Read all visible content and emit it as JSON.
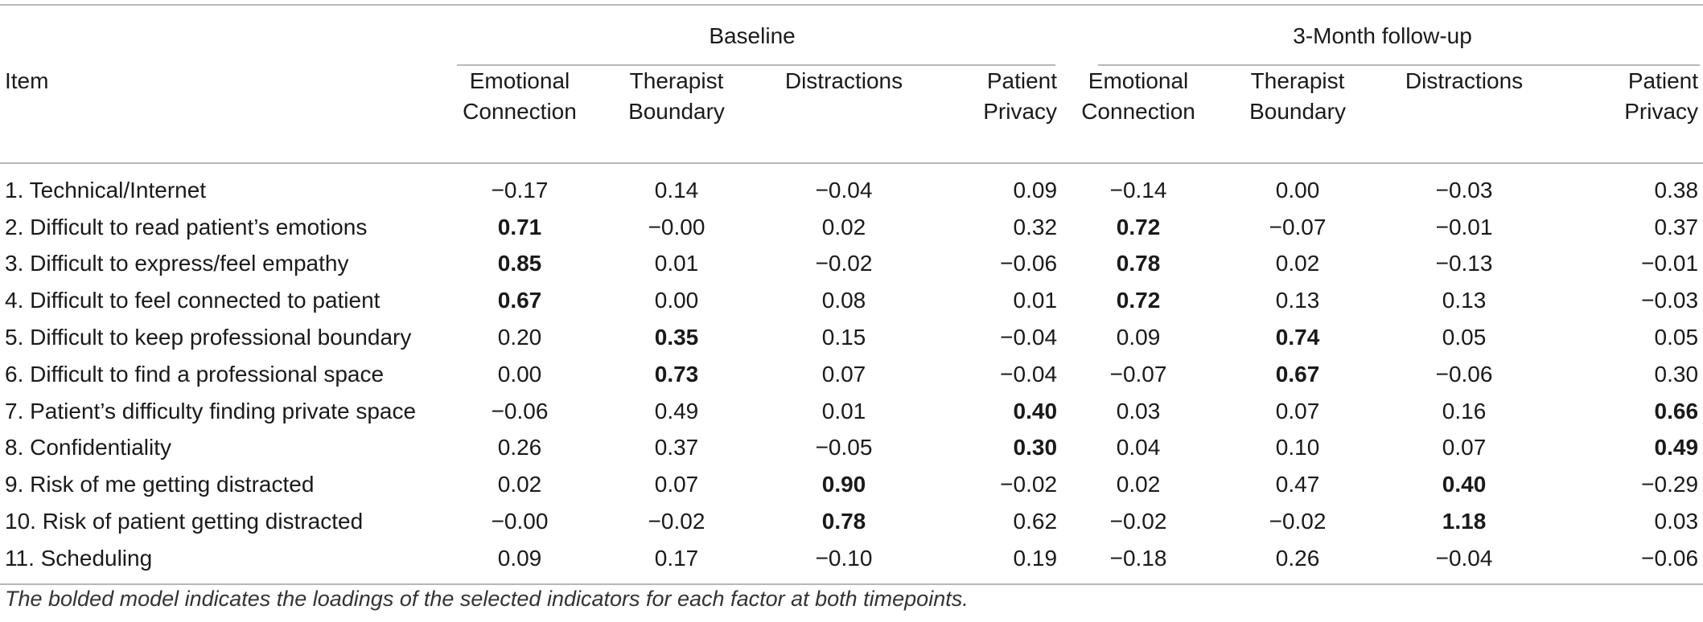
{
  "table": {
    "group_headers": {
      "baseline": "Baseline",
      "followup": "3-Month follow-up"
    },
    "item_header": "Item",
    "column_headers": {
      "baseline": [
        {
          "line1": "Emotional",
          "line2": "Connection"
        },
        {
          "line1": "Therapist",
          "line2": "Boundary"
        },
        {
          "line1": "Distractions",
          "line2": ""
        },
        {
          "line1": "Patient",
          "line2": "Privacy"
        }
      ],
      "followup": [
        {
          "line1": "Emotional",
          "line2": "Connection"
        },
        {
          "line1": "Therapist",
          "line2": "Boundary"
        },
        {
          "line1": "Distractions",
          "line2": ""
        },
        {
          "line1": "Patient",
          "line2": "Privacy"
        }
      ]
    },
    "rows": [
      {
        "item": "1. Technical/Internet",
        "values": [
          "−0.17",
          "0.14",
          "−0.04",
          "0.09",
          "−0.14",
          "0.00",
          "−0.03",
          "0.38"
        ],
        "bold": []
      },
      {
        "item": "2. Difficult to read patient’s emotions",
        "values": [
          "0.71",
          "−0.00",
          "0.02",
          "0.32",
          "0.72",
          "−0.07",
          "−0.01",
          "0.37"
        ],
        "bold": [
          0,
          4
        ]
      },
      {
        "item": "3. Difficult to express/feel empathy",
        "values": [
          "0.85",
          "0.01",
          "−0.02",
          "−0.06",
          "0.78",
          "0.02",
          "−0.13",
          "−0.01"
        ],
        "bold": [
          0,
          4
        ]
      },
      {
        "item": "4. Difficult to feel connected to patient",
        "values": [
          "0.67",
          "0.00",
          "0.08",
          "0.01",
          "0.72",
          "0.13",
          "0.13",
          "−0.03"
        ],
        "bold": [
          0,
          4
        ]
      },
      {
        "item": "5. Difficult to keep professional boundary",
        "values": [
          "0.20",
          "0.35",
          "0.15",
          "−0.04",
          "0.09",
          "0.74",
          "0.05",
          "0.05"
        ],
        "bold": [
          1,
          5
        ]
      },
      {
        "item": "6. Difficult to find a professional space",
        "values": [
          "0.00",
          "0.73",
          "0.07",
          "−0.04",
          "−0.07",
          "0.67",
          "−0.06",
          "0.30"
        ],
        "bold": [
          1,
          5
        ]
      },
      {
        "item": "7. Patient’s difficulty finding private space",
        "values": [
          "−0.06",
          "0.49",
          "0.01",
          "0.40",
          "0.03",
          "0.07",
          "0.16",
          "0.66"
        ],
        "bold": [
          3,
          7
        ]
      },
      {
        "item": "8. Confidentiality",
        "values": [
          "0.26",
          "0.37",
          "−0.05",
          "0.30",
          "0.04",
          "0.10",
          "0.07",
          "0.49"
        ],
        "bold": [
          3,
          7
        ]
      },
      {
        "item": "9. Risk of me getting distracted",
        "values": [
          "0.02",
          "0.07",
          "0.90",
          "−0.02",
          "0.02",
          "0.47",
          "0.40",
          "−0.29"
        ],
        "bold": [
          2,
          6
        ]
      },
      {
        "item": "10. Risk of patient getting distracted",
        "values": [
          "−0.00",
          "−0.02",
          "0.78",
          "0.62",
          "−0.02",
          "−0.02",
          "1.18",
          "0.03"
        ],
        "bold": [
          2,
          6
        ]
      },
      {
        "item": "11. Scheduling",
        "values": [
          "0.09",
          "0.17",
          "−0.10",
          "0.19",
          "−0.18",
          "0.26",
          "−0.04",
          "−0.06"
        ],
        "bold": []
      }
    ]
  },
  "caption": "The bolded model indicates the loadings of the selected indicators for each factor at both timepoints."
}
